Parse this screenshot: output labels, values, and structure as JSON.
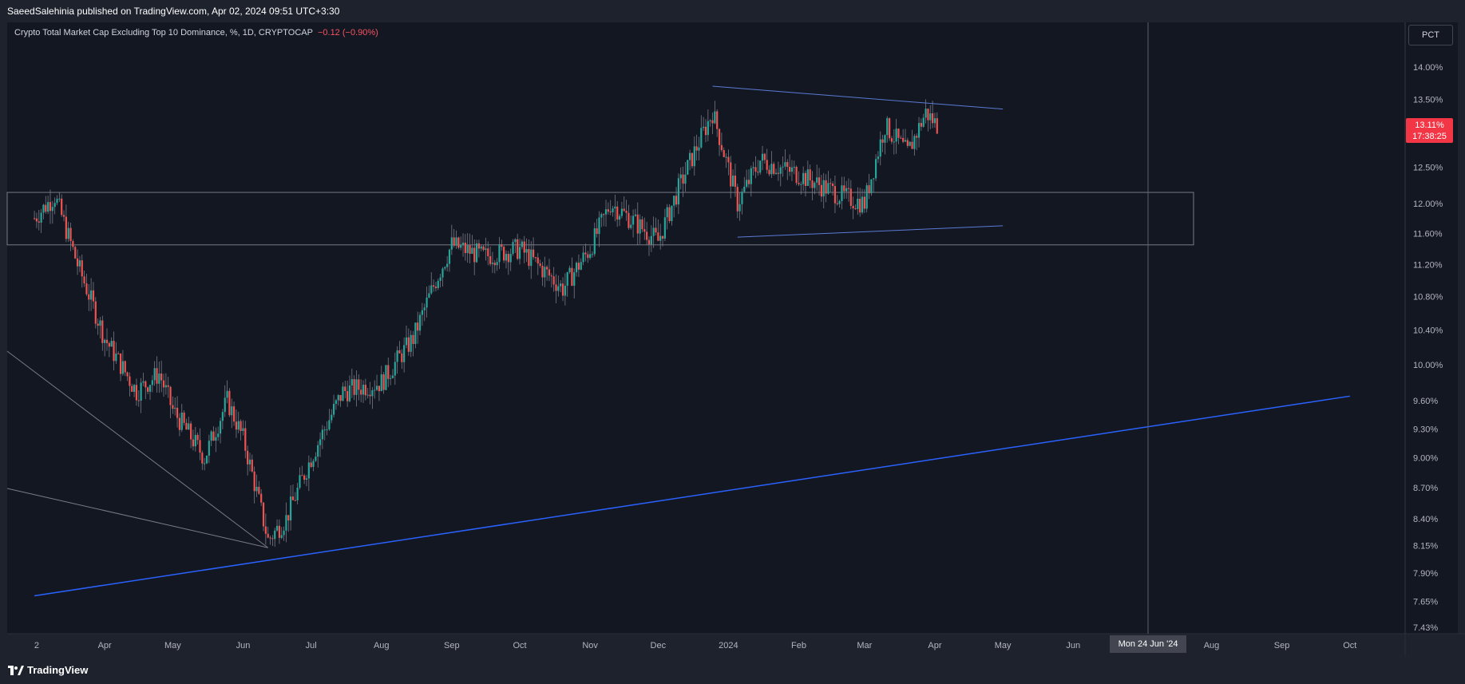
{
  "header": {
    "publisher": "SaeedSalehinia published on TradingView.com, Apr 02, 2024 09:51 UTC+3:30"
  },
  "legend": {
    "title": "Crypto Total Market Cap Excluding Top 10 Dominance, %, 1D, CRYPTOCAP",
    "change": "−0.12 (−0.90%)"
  },
  "scale_button": "PCT",
  "last_price": {
    "value": "13.11%",
    "countdown": "17:38:25"
  },
  "crosshair_date": "Mon 24 Jun '24",
  "footer": {
    "brand": "TradingView"
  },
  "colors": {
    "background": "#131722",
    "up": "#26a69a",
    "down": "#ef5350",
    "trendline": "#2962ff",
    "label": "#f23645"
  },
  "chart_data": {
    "type": "candlestick",
    "title": "Crypto Total Market Cap Excluding Top 10 Dominance, %, 1D, CRYPTOCAP",
    "y_scale": "percentage",
    "y_ticks": [
      "14.00%",
      "13.50%",
      "13.11%",
      "12.50%",
      "12.00%",
      "11.60%",
      "11.20%",
      "10.80%",
      "10.40%",
      "10.00%",
      "9.60%",
      "9.30%",
      "9.00%",
      "8.70%",
      "8.40%",
      "8.15%",
      "7.90%",
      "7.65%",
      "7.43%"
    ],
    "x_ticks": [
      "2",
      "Apr",
      "May",
      "Jun",
      "Jul",
      "Aug",
      "Sep",
      "Oct",
      "Nov",
      "Dec",
      "2024",
      "Feb",
      "Mar",
      "Apr",
      "May",
      "Jun",
      "Aug",
      "Sep",
      "Oct"
    ],
    "series": [
      {
        "approx_close_path": [
          [
            "Mar 2023",
            11.8
          ],
          [
            "Mar 10 2023",
            12.1
          ],
          [
            "Mar 20 2023",
            11.2
          ],
          [
            "Apr 2023",
            10.3
          ],
          [
            "Apr 15 2023",
            9.7
          ],
          [
            "Apr 25 2023",
            9.9
          ],
          [
            "May 2023",
            9.5
          ],
          [
            "May 15 2023",
            9.0
          ],
          [
            "May 25 2023",
            9.6
          ],
          [
            "Jun 2023",
            9.2
          ],
          [
            "Jun 12 2023",
            8.2
          ],
          [
            "Jun 20 2023",
            8.4
          ],
          [
            "Jul 2023",
            9.0
          ],
          [
            "Jul 15 2023",
            9.7
          ],
          [
            "Aug 2023",
            9.8
          ],
          [
            "Aug 15 2023",
            10.3
          ],
          [
            "Aug 25 2023",
            11.0
          ],
          [
            "Sep 2023",
            11.45
          ],
          [
            "Sep 15 2023",
            11.3
          ],
          [
            "Oct 2023",
            11.4
          ],
          [
            "Oct 20 2023",
            10.9
          ],
          [
            "Nov 2023",
            11.4
          ],
          [
            "Nov 10 2023",
            12.0
          ],
          [
            "Dec 2023",
            11.5
          ],
          [
            "Dec 10 2023",
            12.2
          ],
          [
            "Dec 25 2023",
            13.3
          ],
          [
            "Jan 5 2024",
            12.0
          ],
          [
            "Jan 15 2024",
            12.6
          ],
          [
            "Feb 2024",
            12.4
          ],
          [
            "Feb 20 2024",
            12.1
          ],
          [
            "Mar 2024",
            12.0
          ],
          [
            "Mar 10 2024",
            13.1
          ],
          [
            "Mar 20 2024",
            12.7
          ],
          [
            "Mar 28 2024",
            13.3
          ],
          [
            "Apr 2 2024",
            13.11
          ]
        ]
      }
    ],
    "annotations": {
      "rectangle_zone": [
        11.45,
        12.15
      ],
      "triangle_upper": [
        [
          "Dec 25 2023",
          13.7
        ],
        [
          "May 2024",
          13.35
        ]
      ],
      "triangle_lower": [
        [
          "Jan 5 2024",
          11.55
        ],
        [
          "May 2024",
          11.7
        ]
      ],
      "long_trendline": [
        [
          "Mar 2023",
          7.7
        ],
        [
          "Oct 2024",
          9.65
        ]
      ]
    }
  }
}
